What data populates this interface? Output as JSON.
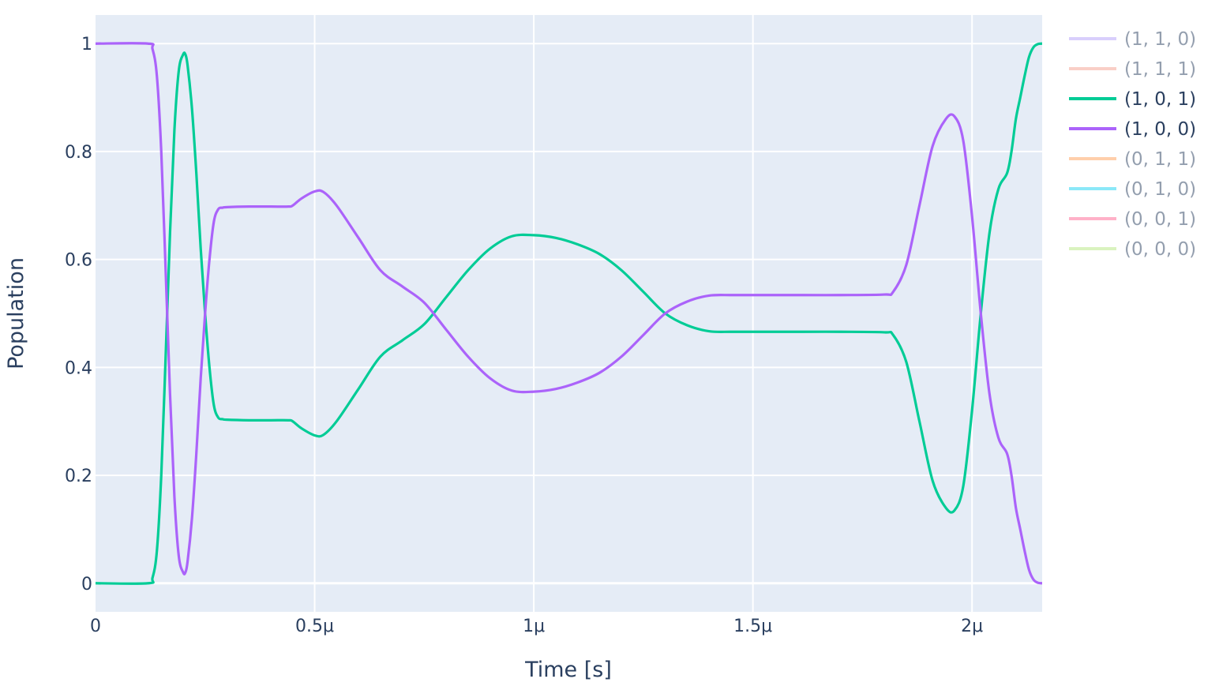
{
  "chart_data": {
    "type": "line",
    "xlabel": "Time [s]",
    "ylabel": "Population",
    "xlim": [
      0,
      2.16
    ],
    "ylim": [
      -0.053,
      1.053
    ],
    "x_unit_note": "",
    "xticks": [
      {
        "value": 0,
        "label": "0"
      },
      {
        "value": 0.5,
        "label": "0.5μ"
      },
      {
        "value": 1.0,
        "label": "1μ"
      },
      {
        "value": 1.5,
        "label": "1.5μ"
      },
      {
        "value": 2.0,
        "label": "2μ"
      }
    ],
    "yticks": [
      {
        "value": 0,
        "label": "0"
      },
      {
        "value": 0.2,
        "label": "0.2"
      },
      {
        "value": 0.4,
        "label": "0.4"
      },
      {
        "value": 0.6,
        "label": "0.6"
      },
      {
        "value": 0.8,
        "label": "0.8"
      },
      {
        "value": 1,
        "label": "1"
      }
    ],
    "grid": true,
    "plot_background": "#e5ecf6",
    "legend_position": "right",
    "series": [
      {
        "name": "(1, 1, 0)",
        "color": "#b4a0fa",
        "visible": false,
        "x": [],
        "y": []
      },
      {
        "name": "(1, 1, 1)",
        "color": "#f5a090",
        "visible": false,
        "x": [],
        "y": []
      },
      {
        "name": "(1, 0, 1)",
        "color": "#00cc96",
        "visible": true,
        "x": [
          0,
          0.12,
          0.13,
          0.14,
          0.15,
          0.16,
          0.17,
          0.18,
          0.19,
          0.2,
          0.205,
          0.21,
          0.22,
          0.23,
          0.24,
          0.25,
          0.26,
          0.27,
          0.28,
          0.29,
          0.3,
          0.35,
          0.4,
          0.44,
          0.45,
          0.47,
          0.5,
          0.52,
          0.55,
          0.6,
          0.65,
          0.7,
          0.75,
          0.8,
          0.85,
          0.9,
          0.95,
          1.0,
          1.05,
          1.1,
          1.15,
          1.2,
          1.25,
          1.3,
          1.35,
          1.4,
          1.45,
          1.5,
          1.55,
          1.6,
          1.7,
          1.8,
          1.82,
          1.85,
          1.88,
          1.91,
          1.94,
          1.96,
          1.98,
          2.0,
          2.02,
          2.04,
          2.06,
          2.08,
          2.09,
          2.1,
          2.11,
          2.12,
          2.13,
          2.14,
          2.15,
          2.16
        ],
        "y": [
          0,
          0,
          0.01,
          0.06,
          0.2,
          0.42,
          0.65,
          0.84,
          0.95,
          0.98,
          0.98,
          0.96,
          0.88,
          0.76,
          0.62,
          0.5,
          0.4,
          0.33,
          0.307,
          0.304,
          0.303,
          0.302,
          0.302,
          0.302,
          0.3,
          0.287,
          0.274,
          0.275,
          0.3,
          0.36,
          0.42,
          0.45,
          0.48,
          0.53,
          0.58,
          0.62,
          0.643,
          0.645,
          0.64,
          0.628,
          0.61,
          0.58,
          0.54,
          0.5,
          0.478,
          0.467,
          0.466,
          0.466,
          0.466,
          0.466,
          0.466,
          0.465,
          0.46,
          0.41,
          0.3,
          0.19,
          0.14,
          0.135,
          0.18,
          0.32,
          0.5,
          0.65,
          0.73,
          0.76,
          0.8,
          0.86,
          0.9,
          0.94,
          0.975,
          0.993,
          0.999,
          1.0
        ]
      },
      {
        "name": "(1, 0, 0)",
        "color": "#ab63fa",
        "visible": true,
        "x": [
          0,
          0.12,
          0.13,
          0.14,
          0.15,
          0.16,
          0.17,
          0.18,
          0.19,
          0.2,
          0.205,
          0.21,
          0.22,
          0.23,
          0.24,
          0.25,
          0.26,
          0.27,
          0.28,
          0.29,
          0.3,
          0.35,
          0.4,
          0.44,
          0.45,
          0.47,
          0.5,
          0.52,
          0.55,
          0.6,
          0.65,
          0.7,
          0.75,
          0.8,
          0.85,
          0.9,
          0.95,
          1.0,
          1.05,
          1.1,
          1.15,
          1.2,
          1.25,
          1.3,
          1.35,
          1.4,
          1.45,
          1.5,
          1.55,
          1.6,
          1.7,
          1.8,
          1.82,
          1.85,
          1.88,
          1.91,
          1.94,
          1.96,
          1.98,
          2.0,
          2.02,
          2.04,
          2.06,
          2.08,
          2.09,
          2.1,
          2.11,
          2.12,
          2.13,
          2.14,
          2.15,
          2.16
        ],
        "y": [
          1,
          1,
          0.99,
          0.94,
          0.8,
          0.58,
          0.35,
          0.16,
          0.05,
          0.02,
          0.02,
          0.04,
          0.12,
          0.24,
          0.38,
          0.5,
          0.6,
          0.67,
          0.693,
          0.696,
          0.697,
          0.698,
          0.698,
          0.698,
          0.7,
          0.713,
          0.726,
          0.725,
          0.7,
          0.64,
          0.58,
          0.55,
          0.52,
          0.47,
          0.42,
          0.38,
          0.357,
          0.355,
          0.36,
          0.372,
          0.39,
          0.42,
          0.46,
          0.5,
          0.522,
          0.533,
          0.534,
          0.534,
          0.534,
          0.534,
          0.534,
          0.535,
          0.54,
          0.59,
          0.7,
          0.81,
          0.86,
          0.865,
          0.82,
          0.68,
          0.5,
          0.35,
          0.27,
          0.24,
          0.2,
          0.14,
          0.1,
          0.06,
          0.025,
          0.007,
          0.001,
          0.0
        ]
      },
      {
        "name": "(0, 1, 1)",
        "color": "#ffa15a",
        "visible": false,
        "x": [],
        "y": []
      },
      {
        "name": "(0, 1, 0)",
        "color": "#19d3f3",
        "visible": false,
        "x": [],
        "y": []
      },
      {
        "name": "(0, 0, 1)",
        "color": "#ff6692",
        "visible": false,
        "x": [],
        "y": []
      },
      {
        "name": "(0, 0, 0)",
        "color": "#b6e880",
        "visible": false,
        "x": [],
        "y": []
      }
    ]
  }
}
